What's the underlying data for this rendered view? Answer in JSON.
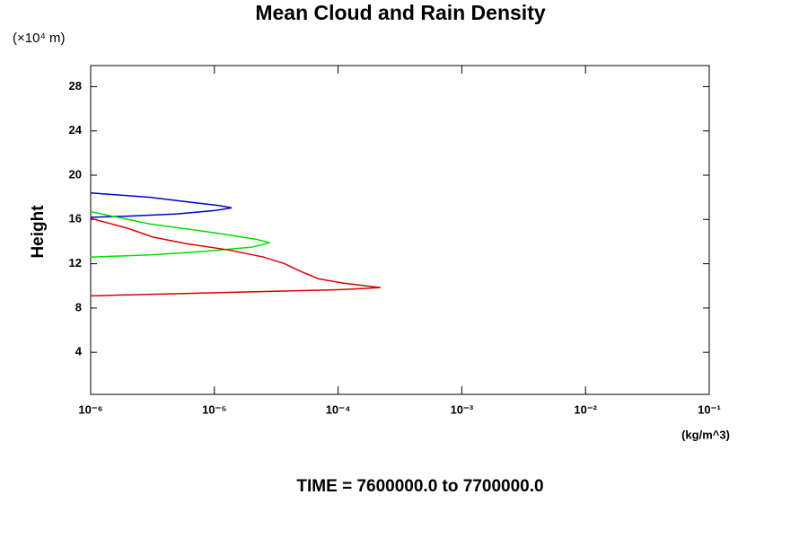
{
  "chart_data": {
    "type": "line",
    "title": "Mean Cloud and Rain Density",
    "y_unit": "(×10⁴ m)",
    "ylabel": "Height",
    "x_unit": "(kg/m^3)",
    "footer": "TIME = 7600000.0 to 7700000.0",
    "xscale": "log",
    "xlim": [
      1e-06,
      0.1
    ],
    "xticks": [
      {
        "value": 1e-06,
        "label": "10⁻⁶"
      },
      {
        "value": 1e-05,
        "label": "10⁻⁵"
      },
      {
        "value": 0.0001,
        "label": "10⁻⁴"
      },
      {
        "value": 0.001,
        "label": "10⁻³"
      },
      {
        "value": 0.01,
        "label": "10⁻²"
      },
      {
        "value": 0.1,
        "label": "10⁻¹"
      }
    ],
    "ylim": [
      0.2,
      29.9
    ],
    "yticks": [
      4,
      8,
      12,
      16,
      20,
      24,
      28
    ],
    "series": [
      {
        "color": "#0000cc",
        "x": [
          1e-06,
          3e-06,
          6e-06,
          1.1e-05,
          1.38e-05,
          1e-05,
          5e-06,
          2e-06,
          1e-06
        ],
        "values": [
          18.4,
          18.0,
          17.6,
          17.25,
          17.05,
          16.8,
          16.5,
          16.3,
          16.2
        ]
      },
      {
        "color": "#00e000",
        "x": [
          1e-06,
          3e-06,
          1e-05,
          2.2e-05,
          2.8e-05,
          2e-05,
          8e-06,
          3e-06,
          1e-06
        ],
        "values": [
          16.7,
          15.6,
          14.8,
          14.2,
          13.9,
          13.5,
          13.1,
          12.8,
          12.6
        ]
      },
      {
        "color": "#dd0000",
        "x": [
          1e-06,
          2e-06,
          3.2e-06,
          6e-06,
          1.3e-05,
          2.5e-05,
          3.7e-05,
          5e-05,
          6.9e-05,
          0.00011,
          0.00022,
          0.0001,
          2.8e-05,
          5.2e-06,
          1e-06
        ],
        "values": [
          16.1,
          15.2,
          14.4,
          13.8,
          13.25,
          12.6,
          12.0,
          11.3,
          10.65,
          10.25,
          9.85,
          9.65,
          9.5,
          9.3,
          9.1
        ]
      }
    ]
  }
}
